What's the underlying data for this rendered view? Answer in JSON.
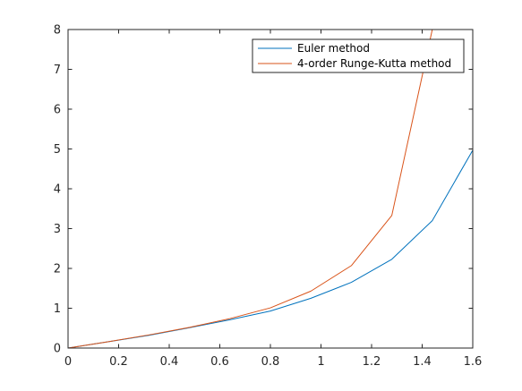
{
  "chart_data": {
    "type": "line",
    "title": "",
    "xlabel": "",
    "ylabel": "",
    "xlim": [
      0,
      1.6
    ],
    "ylim": [
      0,
      8
    ],
    "xticks": [
      0,
      0.2,
      0.4,
      0.6,
      0.8,
      1,
      1.2,
      1.4,
      1.6
    ],
    "xtick_labels": [
      "0",
      "0.2",
      "0.4",
      "0.6",
      "0.8",
      "1",
      "1.2",
      "1.4",
      "1.6"
    ],
    "yticks": [
      0,
      1,
      2,
      3,
      4,
      5,
      6,
      7,
      8
    ],
    "ytick_labels": [
      "0",
      "1",
      "2",
      "3",
      "4",
      "5",
      "6",
      "7",
      "8"
    ],
    "grid": false,
    "legend_position": "top-right",
    "series": [
      {
        "name": "Euler method",
        "color": "#0072BD",
        "x": [
          0,
          0.16,
          0.32,
          0.48,
          0.64,
          0.8,
          0.96,
          1.12,
          1.28,
          1.44,
          1.6
        ],
        "y": [
          0,
          0.16,
          0.32,
          0.51,
          0.71,
          0.93,
          1.25,
          1.65,
          2.23,
          3.2,
          4.97
        ]
      },
      {
        "name": "4-order Runge-Kutta method",
        "color": "#D95319",
        "x": [
          0,
          0.16,
          0.32,
          0.48,
          0.64,
          0.8,
          0.96,
          1.12,
          1.28,
          1.44,
          1.6
        ],
        "y": [
          0,
          0.16,
          0.33,
          0.52,
          0.74,
          1.01,
          1.43,
          2.07,
          3.33,
          8.0,
          8.0
        ]
      }
    ]
  }
}
